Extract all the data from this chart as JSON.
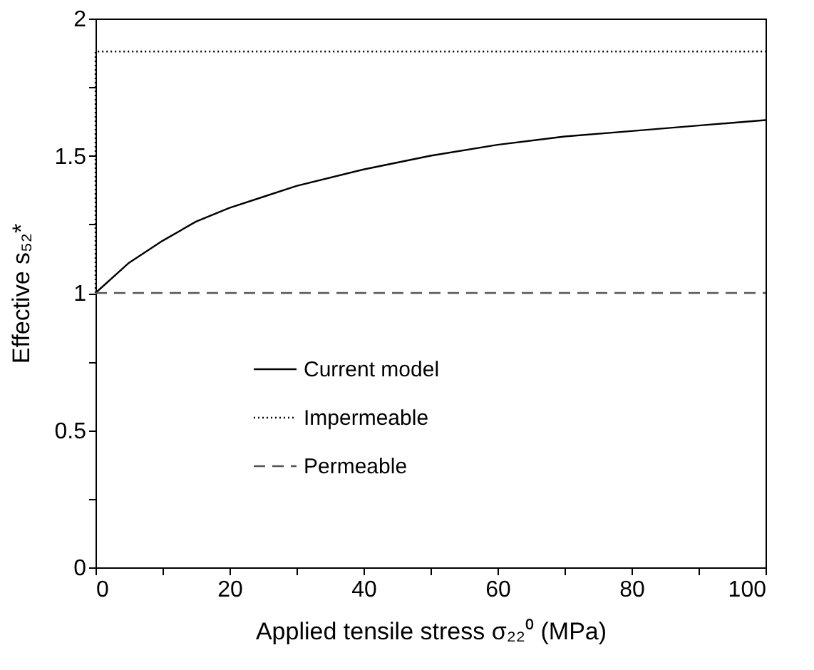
{
  "chart_data": {
    "type": "line",
    "xlabel": "Applied tensile stress σ₂₂⁰ (MPa)",
    "ylabel": "Effective s₅₂*",
    "xlim": [
      0,
      100
    ],
    "ylim": [
      0,
      2
    ],
    "xticks": [
      0,
      {
        "value": 10,
        "label": null
      },
      20,
      {
        "value": 30,
        "label": null
      },
      40,
      {
        "value": 50,
        "label": null
      },
      60,
      {
        "value": 70,
        "label": null
      },
      80,
      {
        "value": 90,
        "label": null
      },
      100
    ],
    "yticks": [
      0,
      {
        "value": 0.25,
        "label": null
      },
      0.5,
      {
        "value": 0.75,
        "label": null
      },
      1,
      {
        "value": 1.25,
        "label": null
      },
      1.5,
      {
        "value": 1.75,
        "label": null
      },
      2
    ],
    "grid": false,
    "legend": "left",
    "marker": "none",
    "series": [
      {
        "name": "Current model",
        "color": "#000000",
        "line_style": "solid",
        "x": [
          0,
          5,
          10,
          15,
          20,
          25,
          30,
          40,
          50,
          60,
          70,
          80,
          90,
          100
        ],
        "values": [
          1,
          1.11,
          1.19,
          1.26,
          1.31,
          1.35,
          1.39,
          1.45,
          1.5,
          1.54,
          1.57,
          1.59,
          1.61,
          1.63
        ]
      },
      {
        "name": "Impermeable",
        "color": "#000000",
        "line_style": "dotted",
        "x": [
          0,
          0,
          100
        ],
        "values": [
          1,
          1.88,
          1.88
        ]
      },
      {
        "name": "Permeable",
        "color": "#555555",
        "line_style": "dashed",
        "x": [
          0,
          100
        ],
        "values": [
          1,
          1
        ]
      }
    ]
  }
}
